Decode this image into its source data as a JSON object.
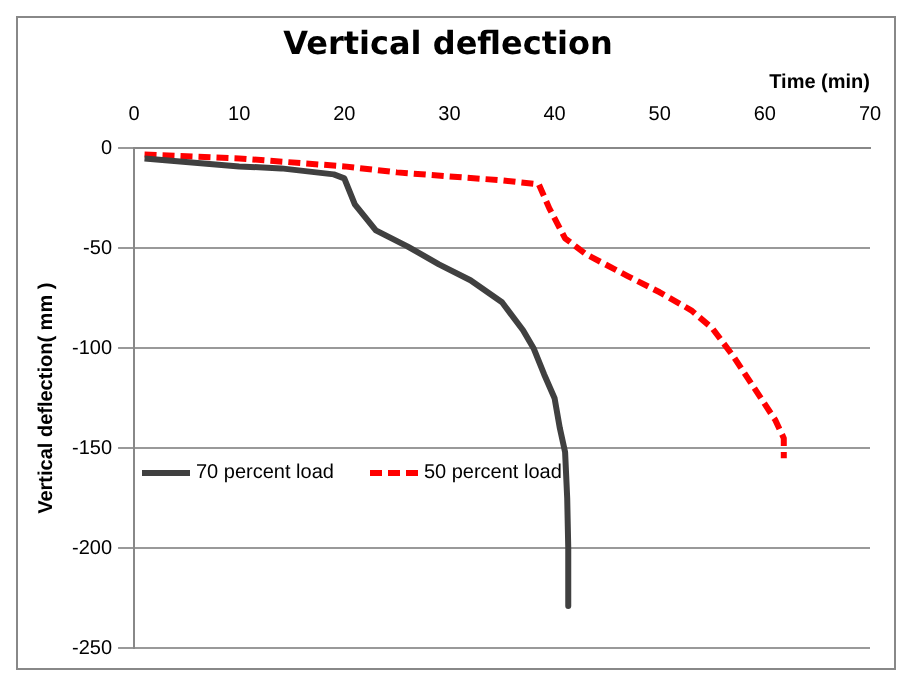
{
  "chart_data": {
    "type": "line",
    "title": "Vertical deflection",
    "xlabel": "Time (min)",
    "ylabel": "Vertical deflection( mm )",
    "xlim": [
      0,
      70
    ],
    "xticks": [
      0,
      10,
      20,
      30,
      40,
      50,
      60,
      70
    ],
    "ylim": [
      -250,
      0
    ],
    "yticks": [
      -250,
      -200,
      -150,
      -100,
      -50,
      0
    ],
    "grid": "y",
    "legend": "bottom left",
    "marker": "none",
    "series": [
      {
        "name": "70 percent load",
        "color": "#404040",
        "line_style": "solid",
        "x": [
          1,
          10,
          14,
          19,
          20,
          21,
          23,
          26,
          29,
          32,
          35,
          37,
          38,
          39,
          40,
          40.5,
          41,
          41.2,
          41.3,
          41.3
        ],
        "values": [
          -5,
          -9,
          -10,
          -13,
          -15,
          -28,
          -41,
          -49,
          -58,
          -66,
          -77,
          -91,
          -100,
          -113,
          -125,
          -140,
          -152,
          -175,
          -200,
          -229
        ]
      },
      {
        "name": "50 percent load",
        "color": "#ff0000",
        "line_style": "dashed",
        "x": [
          1,
          10,
          20,
          25,
          30,
          35,
          38.5,
          39.5,
          41,
          43,
          47,
          50,
          53,
          55,
          57,
          59,
          61,
          61.8,
          61.8
        ],
        "values": [
          -3,
          -5,
          -9,
          -12,
          -14,
          -16,
          -18,
          -30,
          -45,
          -53,
          -64,
          -72,
          -81,
          -90,
          -104,
          -120,
          -136,
          -145,
          -155
        ]
      }
    ]
  }
}
